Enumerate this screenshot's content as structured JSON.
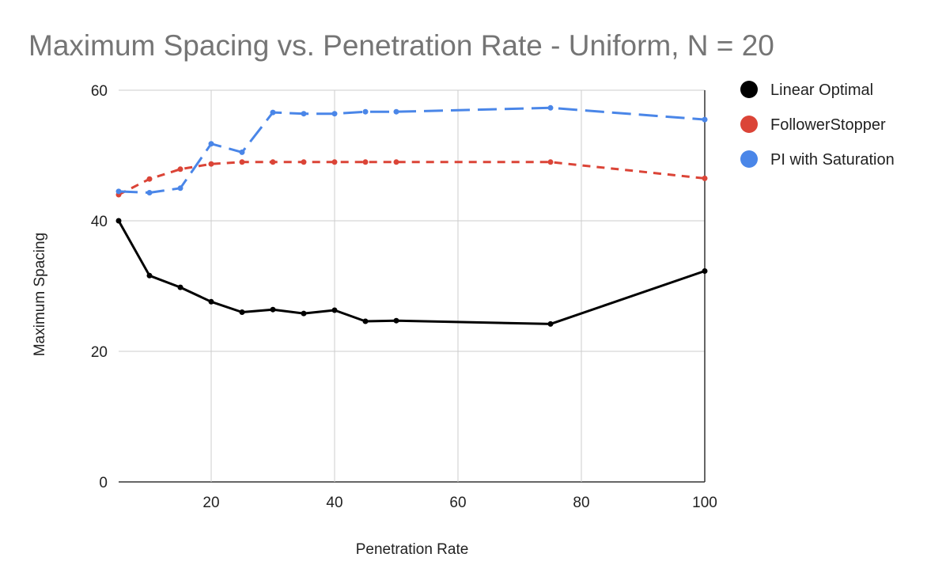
{
  "chart_data": {
    "type": "line",
    "title": "Maximum Spacing vs. Penetration Rate - Uniform, N = 20",
    "xlabel": "Penetration Rate",
    "ylabel": "Maximum Spacing",
    "xlim": [
      5,
      100
    ],
    "ylim": [
      0,
      60
    ],
    "xticks": [
      20,
      40,
      60,
      80,
      100
    ],
    "yticks": [
      0,
      20,
      40,
      60
    ],
    "grid": true,
    "legend_position": "right",
    "series": [
      {
        "name": "Linear Optimal",
        "color": "#000000",
        "style": "solid",
        "x": [
          5,
          10,
          15,
          20,
          25,
          30,
          35,
          40,
          45,
          50,
          75,
          100
        ],
        "y": [
          40,
          31.6,
          29.8,
          27.6,
          26.0,
          26.4,
          25.8,
          26.3,
          24.6,
          24.7,
          24.2,
          32.3
        ]
      },
      {
        "name": "FollowerStopper",
        "color": "#db4437",
        "style": "short-dash",
        "x": [
          5,
          10,
          15,
          20,
          25,
          30,
          35,
          40,
          45,
          50,
          75,
          100
        ],
        "y": [
          44.0,
          46.4,
          47.9,
          48.7,
          49.0,
          49.0,
          49.0,
          49.0,
          49.0,
          49.0,
          49.0,
          46.5
        ]
      },
      {
        "name": "PI with Saturation",
        "color": "#4a86e8",
        "style": "long-dash",
        "x": [
          5,
          10,
          15,
          20,
          25,
          30,
          35,
          40,
          45,
          50,
          75,
          100
        ],
        "y": [
          44.5,
          44.3,
          45.0,
          51.8,
          50.5,
          56.6,
          56.4,
          56.4,
          56.7,
          56.7,
          57.3,
          55.5
        ]
      }
    ]
  }
}
